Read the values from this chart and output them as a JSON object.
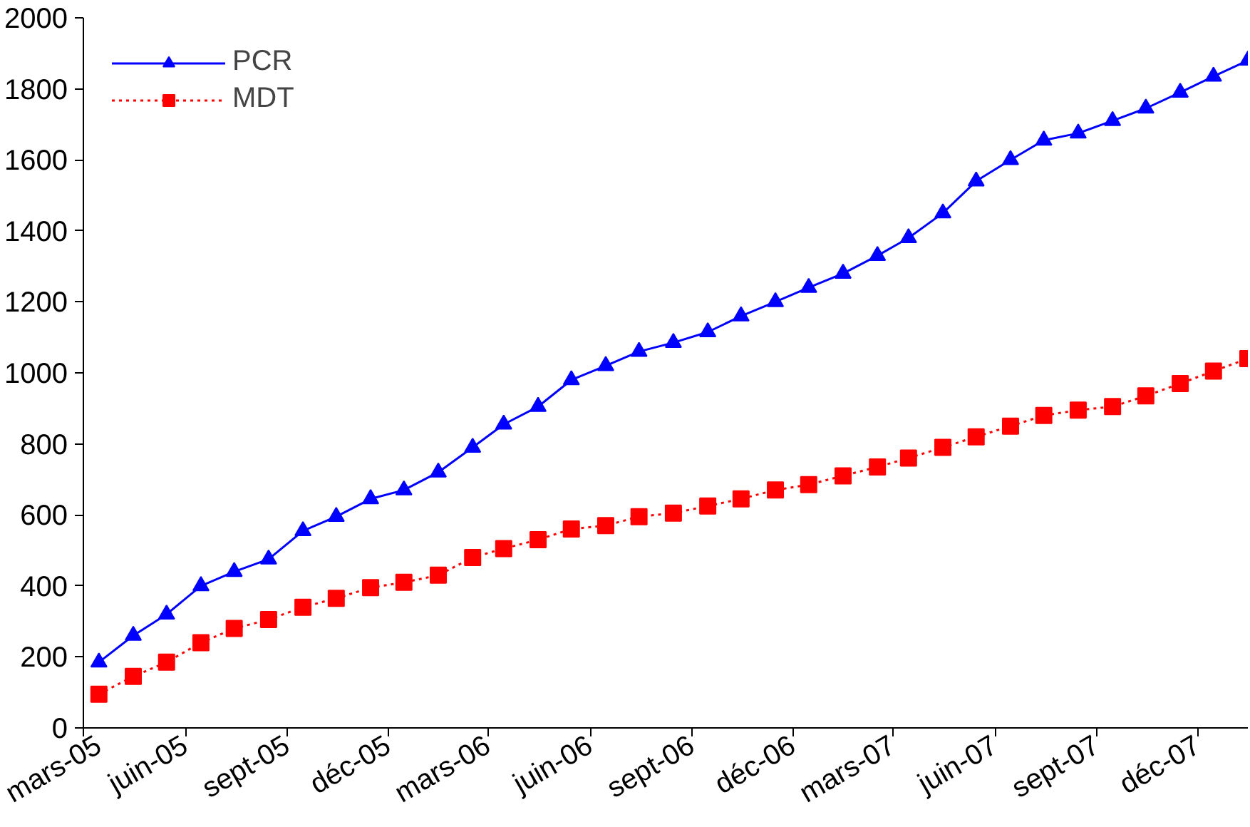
{
  "chart_data": {
    "type": "line",
    "x": [
      "2005-03-15",
      "2005-04-15",
      "2005-05-15",
      "2005-06-15",
      "2005-07-15",
      "2005-08-15",
      "2005-09-15",
      "2005-10-15",
      "2005-11-15",
      "2005-12-15",
      "2006-01-15",
      "2006-02-15",
      "2006-03-15",
      "2006-04-15",
      "2006-05-15",
      "2006-06-15",
      "2006-07-15",
      "2006-08-15",
      "2006-09-15",
      "2006-10-15",
      "2006-11-15",
      "2006-12-15",
      "2007-01-15",
      "2007-02-15",
      "2007-03-15",
      "2007-04-15",
      "2007-05-15",
      "2007-06-15",
      "2007-07-15",
      "2007-08-15",
      "2007-09-15",
      "2007-10-15",
      "2007-11-15",
      "2007-12-15",
      "2008-01-15"
    ],
    "series": [
      {
        "name": "PCR",
        "color": "#0000ff",
        "marker": "triangle",
        "line_style": "solid",
        "values": [
          185,
          260,
          320,
          400,
          440,
          475,
          555,
          595,
          645,
          670,
          720,
          790,
          855,
          905,
          980,
          1020,
          1060,
          1085,
          1115,
          1160,
          1200,
          1240,
          1280,
          1330,
          1380,
          1450,
          1540,
          1600,
          1655,
          1675,
          1710,
          1745,
          1790,
          1835,
          1880
        ]
      },
      {
        "name": "MDT",
        "color": "#ff0000",
        "marker": "square",
        "line_style": "dotted",
        "values": [
          95,
          145,
          185,
          240,
          280,
          305,
          340,
          365,
          395,
          410,
          430,
          480,
          505,
          530,
          560,
          570,
          595,
          605,
          625,
          645,
          670,
          685,
          710,
          735,
          760,
          790,
          820,
          850,
          880,
          895,
          905,
          935,
          970,
          1005,
          1040
        ]
      }
    ],
    "xlim": [
      "2005-03-01",
      "2008-01-15"
    ],
    "xticks": [
      {
        "value": "2005-03-01",
        "label": "mars-05"
      },
      {
        "value": "2005-06-01",
        "label": "juin-05"
      },
      {
        "value": "2005-09-01",
        "label": "sept-05"
      },
      {
        "value": "2005-12-01",
        "label": "déc-05"
      },
      {
        "value": "2006-03-01",
        "label": "mars-06"
      },
      {
        "value": "2006-06-01",
        "label": "juin-06"
      },
      {
        "value": "2006-09-01",
        "label": "sept-06"
      },
      {
        "value": "2006-12-01",
        "label": "déc-06"
      },
      {
        "value": "2007-03-01",
        "label": "mars-07"
      },
      {
        "value": "2007-06-01",
        "label": "juin-07"
      },
      {
        "value": "2007-09-01",
        "label": "sept-07"
      },
      {
        "value": "2007-12-01",
        "label": "déc-07"
      }
    ],
    "ylim": [
      0,
      2000
    ],
    "yticks": [
      0,
      200,
      400,
      600,
      800,
      1000,
      1200,
      1400,
      1600,
      1800,
      2000
    ],
    "grid": false,
    "legend": "top left"
  }
}
